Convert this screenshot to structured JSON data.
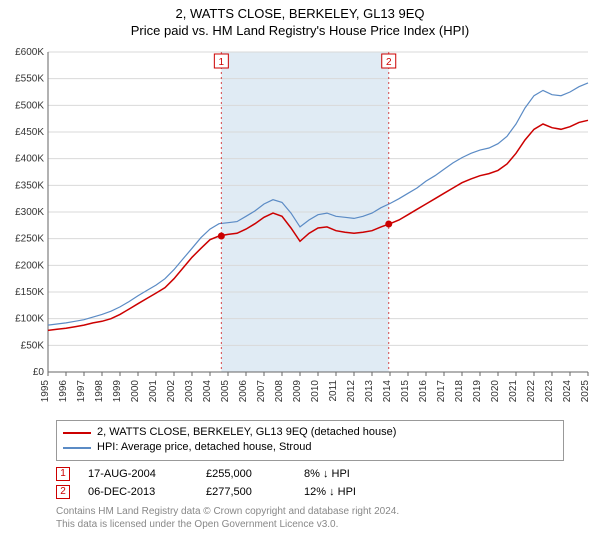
{
  "title_line1": "2, WATTS CLOSE, BERKELEY, GL13 9EQ",
  "title_line2": "Price paid vs. HM Land Registry's House Price Index (HPI)",
  "legend": {
    "property_label": "2, WATTS CLOSE, BERKELEY, GL13 9EQ (detached house)",
    "hpi_label": "HPI: Average price, detached house, Stroud"
  },
  "transactions": [
    {
      "marker": "1",
      "date": "17-AUG-2004",
      "price": "£255,000",
      "diff": "8% ↓ HPI"
    },
    {
      "marker": "2",
      "date": "06-DEC-2013",
      "price": "£277,500",
      "diff": "12% ↓ HPI"
    }
  ],
  "footnote_line1": "Contains HM Land Registry data © Crown copyright and database right 2024.",
  "footnote_line2": "This data is licensed under the Open Government Licence v3.0.",
  "chart": {
    "type": "line",
    "background_color": "#ffffff",
    "grid_color": "#d9d9d9",
    "axis_font_size": 10,
    "x_years": [
      "1995",
      "1996",
      "1997",
      "1998",
      "1999",
      "2000",
      "2001",
      "2002",
      "2003",
      "2004",
      "2005",
      "2006",
      "2007",
      "2008",
      "2009",
      "2010",
      "2011",
      "2012",
      "2013",
      "2014",
      "2015",
      "2016",
      "2017",
      "2018",
      "2019",
      "2020",
      "2021",
      "2022",
      "2023",
      "2024",
      "2025"
    ],
    "y_ticks": [
      0,
      50000,
      100000,
      150000,
      200000,
      250000,
      300000,
      350000,
      400000,
      450000,
      500000,
      550000,
      600000
    ],
    "y_tick_labels": [
      "£0",
      "£50K",
      "£100K",
      "£150K",
      "£200K",
      "£250K",
      "£300K",
      "£350K",
      "£400K",
      "£450K",
      "£500K",
      "£550K",
      "£600K"
    ],
    "ylim": [
      0,
      600000
    ],
    "shaded_band": {
      "from_year": 2004.63,
      "to_year": 2013.93,
      "fill": "#e0ebf4"
    },
    "series": [
      {
        "name": "property",
        "color": "#cc0000",
        "line_width": 1.5,
        "data": [
          [
            1995.0,
            78000
          ],
          [
            1995.5,
            80000
          ],
          [
            1996.0,
            82000
          ],
          [
            1996.5,
            85000
          ],
          [
            1997.0,
            88000
          ],
          [
            1997.5,
            92000
          ],
          [
            1998.0,
            95000
          ],
          [
            1998.5,
            100000
          ],
          [
            1999.0,
            108000
          ],
          [
            1999.5,
            118000
          ],
          [
            2000.0,
            128000
          ],
          [
            2000.5,
            138000
          ],
          [
            2001.0,
            148000
          ],
          [
            2001.5,
            158000
          ],
          [
            2002.0,
            175000
          ],
          [
            2002.5,
            195000
          ],
          [
            2003.0,
            215000
          ],
          [
            2003.5,
            232000
          ],
          [
            2004.0,
            248000
          ],
          [
            2004.5,
            255000
          ],
          [
            2005.0,
            258000
          ],
          [
            2005.5,
            260000
          ],
          [
            2006.0,
            268000
          ],
          [
            2006.5,
            278000
          ],
          [
            2007.0,
            290000
          ],
          [
            2007.5,
            298000
          ],
          [
            2008.0,
            292000
          ],
          [
            2008.5,
            270000
          ],
          [
            2009.0,
            245000
          ],
          [
            2009.5,
            260000
          ],
          [
            2010.0,
            270000
          ],
          [
            2010.5,
            272000
          ],
          [
            2011.0,
            265000
          ],
          [
            2011.5,
            262000
          ],
          [
            2012.0,
            260000
          ],
          [
            2012.5,
            262000
          ],
          [
            2013.0,
            265000
          ],
          [
            2013.5,
            272000
          ],
          [
            2014.0,
            278000
          ],
          [
            2014.5,
            285000
          ],
          [
            2015.0,
            295000
          ],
          [
            2015.5,
            305000
          ],
          [
            2016.0,
            315000
          ],
          [
            2016.5,
            325000
          ],
          [
            2017.0,
            335000
          ],
          [
            2017.5,
            345000
          ],
          [
            2018.0,
            355000
          ],
          [
            2018.5,
            362000
          ],
          [
            2019.0,
            368000
          ],
          [
            2019.5,
            372000
          ],
          [
            2020.0,
            378000
          ],
          [
            2020.5,
            390000
          ],
          [
            2021.0,
            410000
          ],
          [
            2021.5,
            435000
          ],
          [
            2022.0,
            455000
          ],
          [
            2022.5,
            465000
          ],
          [
            2023.0,
            458000
          ],
          [
            2023.5,
            455000
          ],
          [
            2024.0,
            460000
          ],
          [
            2024.5,
            468000
          ],
          [
            2025.0,
            472000
          ]
        ]
      },
      {
        "name": "hpi",
        "color": "#5b8bc5",
        "line_width": 1.2,
        "data": [
          [
            1995.0,
            88000
          ],
          [
            1995.5,
            90000
          ],
          [
            1996.0,
            92000
          ],
          [
            1996.5,
            95000
          ],
          [
            1997.0,
            98000
          ],
          [
            1997.5,
            103000
          ],
          [
            1998.0,
            108000
          ],
          [
            1998.5,
            114000
          ],
          [
            1999.0,
            122000
          ],
          [
            1999.5,
            132000
          ],
          [
            2000.0,
            143000
          ],
          [
            2000.5,
            153000
          ],
          [
            2001.0,
            163000
          ],
          [
            2001.5,
            175000
          ],
          [
            2002.0,
            192000
          ],
          [
            2002.5,
            212000
          ],
          [
            2003.0,
            232000
          ],
          [
            2003.5,
            252000
          ],
          [
            2004.0,
            268000
          ],
          [
            2004.5,
            278000
          ],
          [
            2005.0,
            280000
          ],
          [
            2005.5,
            282000
          ],
          [
            2006.0,
            292000
          ],
          [
            2006.5,
            302000
          ],
          [
            2007.0,
            315000
          ],
          [
            2007.5,
            323000
          ],
          [
            2008.0,
            318000
          ],
          [
            2008.5,
            298000
          ],
          [
            2009.0,
            272000
          ],
          [
            2009.5,
            285000
          ],
          [
            2010.0,
            295000
          ],
          [
            2010.5,
            298000
          ],
          [
            2011.0,
            292000
          ],
          [
            2011.5,
            290000
          ],
          [
            2012.0,
            288000
          ],
          [
            2012.5,
            292000
          ],
          [
            2013.0,
            298000
          ],
          [
            2013.5,
            308000
          ],
          [
            2014.0,
            316000
          ],
          [
            2014.5,
            325000
          ],
          [
            2015.0,
            335000
          ],
          [
            2015.5,
            345000
          ],
          [
            2016.0,
            358000
          ],
          [
            2016.5,
            368000
          ],
          [
            2017.0,
            380000
          ],
          [
            2017.5,
            392000
          ],
          [
            2018.0,
            402000
          ],
          [
            2018.5,
            410000
          ],
          [
            2019.0,
            416000
          ],
          [
            2019.5,
            420000
          ],
          [
            2020.0,
            428000
          ],
          [
            2020.5,
            442000
          ],
          [
            2021.0,
            465000
          ],
          [
            2021.5,
            495000
          ],
          [
            2022.0,
            518000
          ],
          [
            2022.5,
            528000
          ],
          [
            2023.0,
            520000
          ],
          [
            2023.5,
            518000
          ],
          [
            2024.0,
            525000
          ],
          [
            2024.5,
            535000
          ],
          [
            2025.0,
            542000
          ]
        ]
      }
    ],
    "sale_markers": [
      {
        "label": "1",
        "year": 2004.63,
        "price": 255000,
        "dot_color": "#cc0000",
        "guide_color": "#cc0000"
      },
      {
        "label": "2",
        "year": 2013.93,
        "price": 277500,
        "dot_color": "#cc0000",
        "guide_color": "#cc0000"
      }
    ],
    "marker_box": {
      "border": "#cc0000",
      "text": "#cc0000",
      "fill": "#ffffff",
      "size": 14,
      "fontsize": 10
    }
  }
}
